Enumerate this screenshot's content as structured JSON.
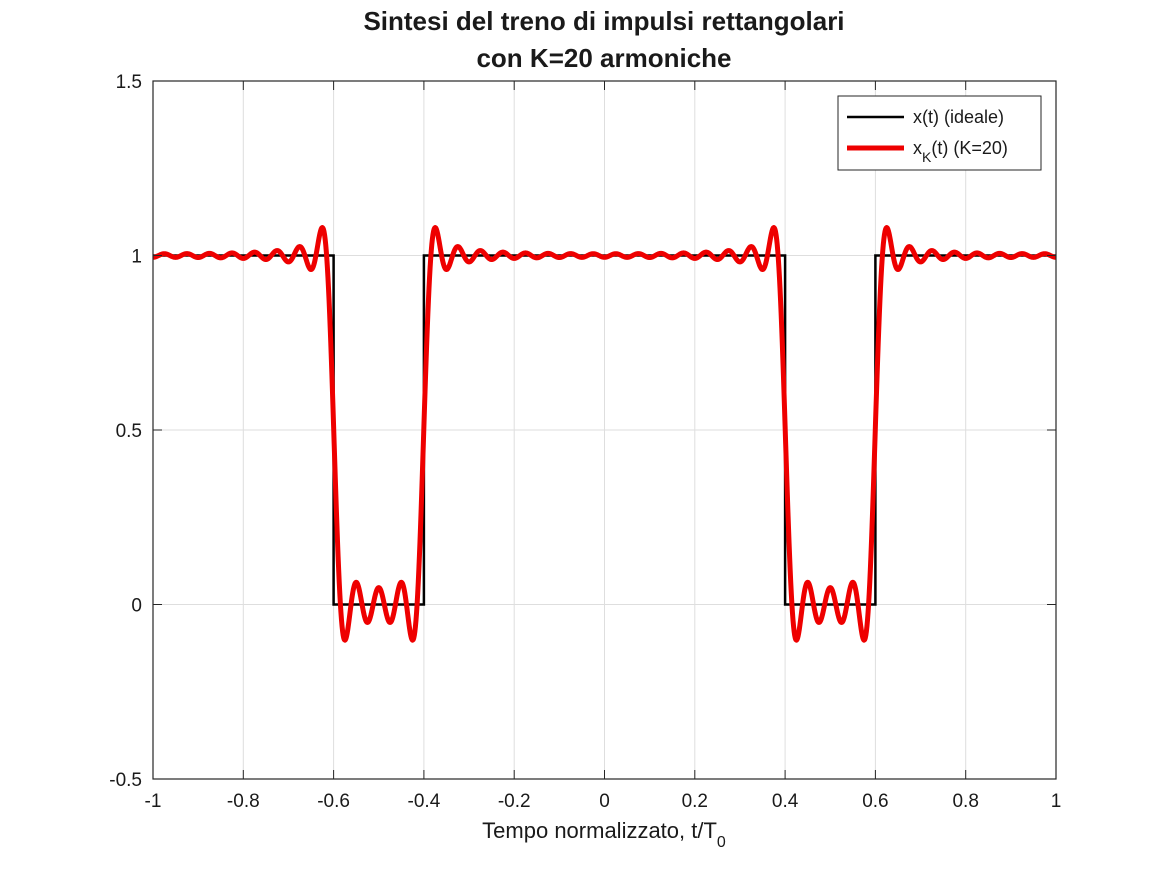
{
  "chart_data": {
    "type": "line",
    "title": [
      "Sintesi del treno di impulsi rettangolari",
      "con K=20 armoniche"
    ],
    "xlabel": "Tempo normalizzato, t/T",
    "xlabel_sub": "0",
    "ylabel": "",
    "xlim": [
      -1,
      1
    ],
    "ylim": [
      -0.5,
      1.5
    ],
    "xticks": [
      -1,
      -0.8,
      -0.6,
      -0.4,
      -0.2,
      0,
      0.2,
      0.4,
      0.6,
      0.8,
      1
    ],
    "xtick_labels": [
      "-1",
      "-0.8",
      "-0.6",
      "-0.4",
      "-0.2",
      "0",
      "0.2",
      "0.4",
      "0.6",
      "0.8",
      "1"
    ],
    "yticks": [
      -0.5,
      0,
      0.5,
      1,
      1.5
    ],
    "ytick_labels": [
      "-0.5",
      "0",
      "0.5",
      "1",
      "1.5"
    ],
    "grid": true,
    "legend_position": "top-right",
    "series": [
      {
        "name": "x(t) (ideale)",
        "color": "#000000",
        "x": [
          -1,
          -0.6,
          -0.6,
          -0.4,
          -0.4,
          0.4,
          0.4,
          0.6,
          0.6,
          1
        ],
        "y": [
          1,
          1,
          0,
          0,
          1,
          1,
          0,
          0,
          1,
          1
        ]
      },
      {
        "name": "x_K(t) (K=20)",
        "legend_main": "x",
        "legend_sub": "K",
        "legend_rest": "(t) (K=20)",
        "color": "#ee0000",
        "synthesis": {
          "kind": "fourier_rect_pulse_train",
          "harmonics": 20,
          "dc": 0.8,
          "gap_center": 0.5,
          "gap_width": 0.2
        }
      }
    ]
  }
}
